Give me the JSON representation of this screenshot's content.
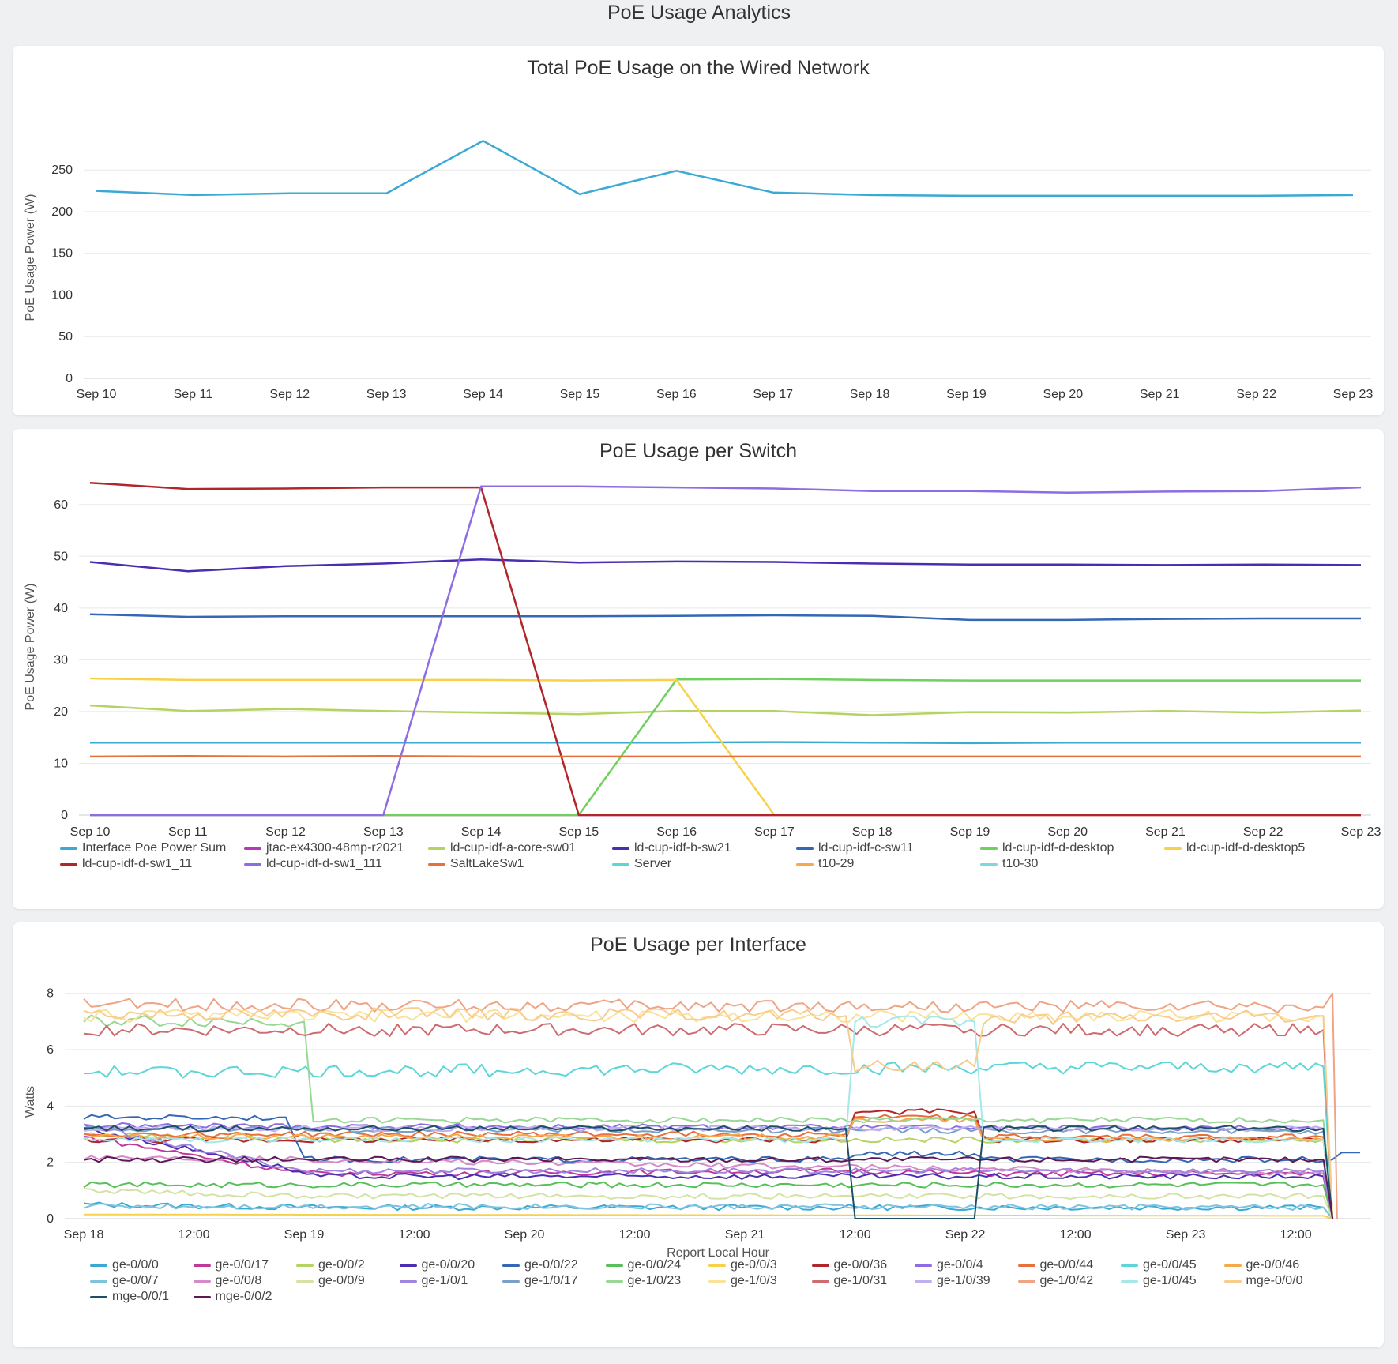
{
  "page": {
    "title": "PoE Usage Analytics"
  },
  "charts": [
    {
      "id": "total",
      "title": "Total PoE Usage on the Wired Network",
      "type": "line",
      "ylabel": "PoE Usage Power (W)",
      "xlabel": "",
      "yticks": [
        0,
        50,
        100,
        150,
        200,
        250
      ],
      "ylim": [
        0,
        290
      ],
      "grid": true,
      "legend": "none",
      "categories": [
        "Sep 10",
        "Sep 11",
        "Sep 12",
        "Sep 13",
        "Sep 14",
        "Sep 15",
        "Sep 16",
        "Sep 17",
        "Sep 18",
        "Sep 19",
        "Sep 20",
        "Sep 21",
        "Sep 22",
        "Sep 23"
      ],
      "series": [
        {
          "color": "#3aaad4",
          "values": [
            225,
            220,
            222,
            222,
            285,
            221,
            249,
            223,
            220,
            219,
            219,
            219,
            219,
            220
          ]
        }
      ]
    },
    {
      "id": "switch",
      "title": "PoE Usage per Switch",
      "type": "line",
      "ylabel": "PoE Usage Power (W)",
      "xlabel": "",
      "yticks": [
        0,
        10,
        20,
        30,
        40,
        50,
        60
      ],
      "ylim": [
        0,
        65
      ],
      "grid": true,
      "legend": "bottom",
      "categories": [
        "Sep 10",
        "Sep 11",
        "Sep 12",
        "Sep 13",
        "Sep 14",
        "Sep 15",
        "Sep 16",
        "Sep 17",
        "Sep 18",
        "Sep 19",
        "Sep 20",
        "Sep 21",
        "Sep 22",
        "Sep 23"
      ],
      "series": [
        {
          "name": "Interface Poe Power Sum",
          "color": "#3aaad4",
          "values": [
            14,
            14,
            14,
            14,
            14,
            14,
            14,
            14.1,
            14,
            13.9,
            14,
            14,
            14,
            14
          ]
        },
        {
          "name": "jtac-ex4300-48mp-r2021",
          "color": "#b43bb4",
          "values": [
            0,
            0,
            0,
            0,
            0,
            0,
            0,
            0,
            0,
            0,
            0,
            0,
            0,
            0
          ]
        },
        {
          "name": "ld-cup-idf-a-core-sw01",
          "color": "#b5d361",
          "values": [
            21.2,
            20.1,
            20.5,
            20.1,
            19.8,
            19.5,
            20.1,
            20.1,
            19.3,
            19.9,
            19.8,
            20.1,
            19.8,
            20.2
          ]
        },
        {
          "name": "ld-cup-idf-b-sw21",
          "color": "#4a2db1",
          "values": [
            48.9,
            47.1,
            48.1,
            48.6,
            49.4,
            48.8,
            49,
            48.9,
            48.6,
            48.4,
            48.4,
            48.3,
            48.4,
            48.3
          ]
        },
        {
          "name": "ld-cup-idf-c-sw11",
          "color": "#3567b4",
          "values": [
            38.8,
            38.3,
            38.4,
            38.4,
            38.4,
            38.4,
            38.5,
            38.6,
            38.5,
            37.7,
            37.7,
            37.9,
            38,
            38
          ]
        },
        {
          "name": "ld-cup-idf-d-desktop",
          "color": "#6fcf5f",
          "values": [
            0,
            0,
            0,
            0,
            0,
            0,
            26.2,
            26.3,
            26.1,
            26,
            26,
            26,
            26,
            26
          ]
        },
        {
          "name": "ld-cup-idf-d-desktop5",
          "color": "#f7d14a",
          "values": [
            26.4,
            26.1,
            26.1,
            26.1,
            26.1,
            26,
            26.1,
            0,
            0,
            0,
            0,
            0,
            0,
            0
          ]
        },
        {
          "name": "ld-cup-idf-d-sw1_11",
          "color": "#b0262b",
          "values": [
            64.2,
            63,
            63.1,
            63.3,
            63.3,
            0,
            0,
            0,
            0,
            0,
            0,
            0,
            0,
            0
          ]
        },
        {
          "name": "ld-cup-idf-d-sw1_111",
          "color": "#8e6de2",
          "values": [
            0,
            0,
            0,
            0,
            63.5,
            63.5,
            63.3,
            63.1,
            62.6,
            62.6,
            62.3,
            62.5,
            62.6,
            63.3
          ]
        },
        {
          "name": "SaltLakeSw1",
          "color": "#e8703a",
          "values": [
            11.3,
            11.4,
            11.3,
            11.4,
            11.3,
            11.3,
            11.3,
            11.3,
            11.3,
            11.3,
            11.3,
            11.3,
            11.3,
            11.3
          ]
        },
        {
          "name": "Server",
          "color": "#5dd6d9",
          "values": null
        },
        {
          "name": "t10-29",
          "color": "#f5a94a",
          "values": null
        },
        {
          "name": "t10-30",
          "color": "#7fd7dc",
          "values": null
        }
      ]
    },
    {
      "id": "iface",
      "title": "PoE Usage per Interface",
      "type": "line",
      "ylabel": "Watts",
      "xlabel": "Report Local Hour",
      "yticks": [
        0,
        2,
        4,
        6,
        8
      ],
      "ylim": [
        0,
        8.3
      ],
      "grid": true,
      "legend": "bottom",
      "xticks": [
        "Sep 18",
        "12:00",
        "Sep 19",
        "12:00",
        "Sep 20",
        "12:00",
        "Sep 21",
        "12:00",
        "Sep 22",
        "12:00",
        "Sep 23",
        "12:00"
      ],
      "xrange_hours": [
        0,
        139
      ],
      "xtick_hours": [
        0,
        12,
        24,
        36,
        48,
        60,
        72,
        84,
        96,
        108,
        120,
        132
      ],
      "series": [
        {
          "name": "ge-0/0/0",
          "color": "#3aaad4",
          "segs": [
            [
              0,
              0.5
            ],
            [
              25,
              0.4
            ],
            [
              135,
              0.4
            ],
            [
              136,
              0
            ]
          ]
        },
        {
          "name": "ge-0/0/17",
          "color": "#c0399a",
          "segs": [
            [
              0,
              2.9
            ],
            [
              24,
              1.6
            ],
            [
              83,
              1.7
            ],
            [
              98,
              1.6
            ],
            [
              135,
              1.6
            ],
            [
              136,
              0
            ]
          ]
        },
        {
          "name": "ge-0/0/2",
          "color": "#b5d361",
          "segs": [
            [
              0,
              3.0
            ],
            [
              24,
              2.8
            ],
            [
              135,
              2.8
            ],
            [
              136,
              0
            ]
          ]
        },
        {
          "name": "ge-0/0/20",
          "color": "#4a2db1",
          "segs": [
            [
              0,
              3.2
            ],
            [
              22,
              1.8
            ],
            [
              25,
              1.5
            ],
            [
              135,
              1.5
            ],
            [
              136,
              0
            ]
          ]
        },
        {
          "name": "ge-0/0/22",
          "color": "#3567b4",
          "segs": [
            [
              0,
              3.6
            ],
            [
              22,
              3.6
            ],
            [
              24,
              2.1
            ],
            [
              83,
              2.1
            ],
            [
              84,
              2.3
            ],
            [
              97,
              2.3
            ],
            [
              98,
              2.1
            ],
            [
              136,
              2.1
            ],
            [
              137,
              2.35
            ],
            [
              139,
              2.35
            ]
          ]
        },
        {
          "name": "ge-0/0/24",
          "color": "#58c05a",
          "segs": [
            [
              0,
              1.2
            ],
            [
              135,
              1.2
            ],
            [
              136,
              0
            ]
          ]
        },
        {
          "name": "ge-0/0/3",
          "color": "#f7d14a",
          "segs": [
            [
              0,
              0.15
            ],
            [
              135,
              0.1
            ],
            [
              136,
              0
            ]
          ]
        },
        {
          "name": "ge-0/0/36",
          "color": "#b0262b",
          "segs": [
            [
              0,
              2.8
            ],
            [
              83,
              2.8
            ],
            [
              84,
              3.8
            ],
            [
              97,
              3.8
            ],
            [
              98,
              2.8
            ],
            [
              135,
              2.8
            ],
            [
              136,
              0
            ]
          ]
        },
        {
          "name": "ge-0/0/4",
          "color": "#8e6de2",
          "segs": [
            [
              0,
              3.3
            ],
            [
              135,
              3.2
            ],
            [
              136,
              0
            ]
          ]
        },
        {
          "name": "ge-0/0/44",
          "color": "#e8703a",
          "segs": [
            [
              0,
              3.0
            ],
            [
              83,
              3.0
            ],
            [
              84,
              3.6
            ],
            [
              97,
              3.6
            ],
            [
              98,
              2.9
            ],
            [
              135,
              2.9
            ],
            [
              136,
              0
            ]
          ]
        },
        {
          "name": "ge-0/0/45",
          "color": "#5dd6d9",
          "segs": [
            [
              0,
              5.2
            ],
            [
              135,
              5.4
            ],
            [
              136,
              0
            ]
          ]
        },
        {
          "name": "ge-0/0/46",
          "color": "#f5a94a",
          "segs": [
            [
              0,
              2.9
            ],
            [
              83,
              2.9
            ],
            [
              84,
              3.5
            ],
            [
              97,
              3.5
            ],
            [
              98,
              2.8
            ],
            [
              135,
              2.8
            ],
            [
              136,
              0
            ]
          ]
        },
        {
          "name": "ge-0/0/7",
          "color": "#7fc2de",
          "segs": [
            [
              0,
              0.45
            ],
            [
              135,
              0.4
            ],
            [
              136,
              0
            ]
          ]
        },
        {
          "name": "ge-0/0/8",
          "color": "#d68ac7",
          "segs": [
            [
              0,
              2.2
            ],
            [
              135,
              1.6
            ],
            [
              136,
              0
            ]
          ]
        },
        {
          "name": "ge-0/0/9",
          "color": "#d4e2a4",
          "segs": [
            [
              0,
              1.0
            ],
            [
              24,
              0.8
            ],
            [
              135,
              0.8
            ],
            [
              136,
              0
            ]
          ]
        },
        {
          "name": "ge-1/0/1",
          "color": "#9f84e0",
          "segs": [
            [
              0,
              3.3
            ],
            [
              24,
              1.7
            ],
            [
              135,
              1.7
            ],
            [
              136,
              0
            ]
          ]
        },
        {
          "name": "ge-1/0/17",
          "color": "#7a9fc9",
          "segs": [
            [
              0,
              3.2
            ],
            [
              135,
              3.1
            ],
            [
              136,
              0
            ]
          ]
        },
        {
          "name": "ge-1/0/23",
          "color": "#9ad796",
          "segs": [
            [
              0,
              7.0
            ],
            [
              24,
              7.0
            ],
            [
              25,
              3.5
            ],
            [
              135,
              3.5
            ],
            [
              136,
              0
            ]
          ]
        },
        {
          "name": "ge-1/0/3",
          "color": "#f9e29a",
          "segs": [
            [
              0,
              7.2
            ],
            [
              135,
              7.2
            ],
            [
              136,
              0
            ]
          ]
        },
        {
          "name": "ge-1/0/31",
          "color": "#cd6b70",
          "segs": [
            [
              0,
              6.7
            ],
            [
              135,
              6.7
            ],
            [
              136,
              0
            ]
          ]
        },
        {
          "name": "ge-1/0/39",
          "color": "#c0afee",
          "segs": [
            [
              0,
              3.2
            ],
            [
              135,
              3.2
            ],
            [
              136,
              0
            ]
          ]
        },
        {
          "name": "ge-1/0/42",
          "color": "#efa484",
          "segs": [
            [
              0,
              7.6
            ],
            [
              135,
              7.5
            ],
            [
              136,
              8.0
            ],
            [
              136.5,
              0
            ]
          ]
        },
        {
          "name": "ge-1/0/45",
          "color": "#a6e8ea",
          "segs": [
            [
              0,
              2.8
            ],
            [
              83,
              2.8
            ],
            [
              84,
              7.0
            ],
            [
              97,
              7.0
            ],
            [
              98,
              2.8
            ],
            [
              135,
              2.8
            ],
            [
              136,
              0
            ]
          ]
        },
        {
          "name": "mge-0/0/0",
          "color": "#f8cc8c",
          "segs": [
            [
              0,
              7.3
            ],
            [
              83,
              7.2
            ],
            [
              84,
              5.4
            ],
            [
              97,
              5.4
            ],
            [
              98,
              7.1
            ],
            [
              135,
              7.2
            ],
            [
              136,
              0
            ]
          ]
        },
        {
          "name": "mge-0/0/1",
          "color": "#1d4f67",
          "segs": [
            [
              0,
              3.2
            ],
            [
              83,
              3.2
            ],
            [
              84,
              0
            ],
            [
              97,
              0
            ],
            [
              98,
              3.2
            ],
            [
              135,
              3.2
            ],
            [
              136,
              0
            ]
          ]
        },
        {
          "name": "mge-0/0/2",
          "color": "#5c1a55",
          "segs": [
            [
              0,
              2.1
            ],
            [
              135,
              2.1
            ],
            [
              136,
              0
            ]
          ]
        }
      ]
    }
  ]
}
